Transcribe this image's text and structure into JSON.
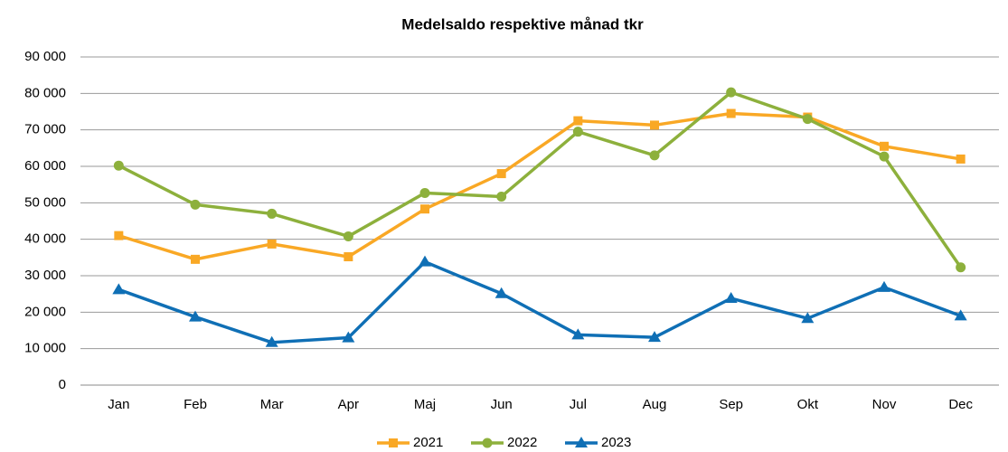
{
  "chart_data": {
    "type": "line",
    "title": "Medelsaldo respektive månad tkr",
    "categories": [
      "Jan",
      "Feb",
      "Mar",
      "Apr",
      "Maj",
      "Jun",
      "Jul",
      "Aug",
      "Sep",
      "Okt",
      "Nov",
      "Dec"
    ],
    "series": [
      {
        "name": "2021",
        "color": "#f9a825",
        "marker": "square",
        "values": [
          41000,
          34500,
          38700,
          35200,
          48300,
          58000,
          72500,
          71300,
          74500,
          73500,
          65500,
          62000
        ]
      },
      {
        "name": "2022",
        "color": "#8db03c",
        "marker": "circle",
        "values": [
          60200,
          49500,
          47000,
          40800,
          52700,
          51700,
          69500,
          63000,
          80300,
          73000,
          62700,
          32300
        ]
      },
      {
        "name": "2023",
        "color": "#0f6fb5",
        "marker": "triangle",
        "values": [
          26200,
          18700,
          11700,
          13000,
          33800,
          25100,
          13800,
          13100,
          23800,
          18300,
          26800,
          19000
        ]
      }
    ],
    "ylim": [
      0,
      90000
    ],
    "yticks": [
      0,
      {
        "value": 10000,
        "label": "10 000"
      },
      {
        "value": 20000,
        "label": "20 000"
      },
      {
        "value": 30000,
        "label": "30 000"
      },
      {
        "value": 40000,
        "label": "40 000"
      },
      {
        "value": 50000,
        "label": "50 000"
      },
      {
        "value": 60000,
        "label": "60 000"
      },
      {
        "value": 70000,
        "label": "70 000"
      },
      {
        "value": 80000,
        "label": "80 000"
      },
      {
        "value": 90000,
        "label": "90 000"
      }
    ],
    "grid": true,
    "legend": "bottom"
  }
}
